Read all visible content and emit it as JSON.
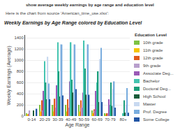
{
  "chart_data": {
    "type": "bar",
    "title": "Weekly Earnings by Age Range colored by Education Level",
    "subtitle": "Here is the chart from source 'American_time_use.xlsx':",
    "annotations": [
      "show average weekly earnings by age range and education level"
    ],
    "xlabel": "Age Range",
    "ylabel": "Weekly Earnings (Average)",
    "legend_title": "Education Level",
    "categories": [
      "0-14",
      "20-29",
      "30-39",
      "40-49",
      "50-59",
      "60-69",
      "70-79",
      "80+"
    ],
    "series": [
      {
        "name": "10th grade",
        "color": "#7dc242",
        "values": [
          50,
          200,
          200,
          200,
          200,
          100,
          50,
          0
        ]
      },
      {
        "name": "11th grade",
        "color": "#f5c400",
        "values": [
          30,
          80,
          80,
          80,
          80,
          50,
          20,
          0
        ]
      },
      {
        "name": "12th grade",
        "color": "#e05a1a",
        "values": [
          40,
          280,
          310,
          300,
          280,
          120,
          50,
          0
        ]
      },
      {
        "name": "9th grade",
        "color": "#b89fcc",
        "values": [
          100,
          100,
          150,
          150,
          150,
          100,
          50,
          0
        ]
      },
      {
        "name": "Associate Deg...",
        "color": "#9b59b6",
        "values": [
          0,
          450,
          550,
          620,
          420,
          450,
          300,
          0
        ]
      },
      {
        "name": "Bachelor",
        "color": "#45c4b0",
        "values": [
          0,
          980,
          1320,
          1320,
          1350,
          600,
          200,
          50
        ]
      },
      {
        "name": "Doctoral Deg...",
        "color": "#1a9e7a",
        "values": [
          0,
          600,
          800,
          650,
          850,
          800,
          600,
          280
        ]
      },
      {
        "name": "High School",
        "color": "#1a5c3a",
        "values": [
          100,
          300,
          350,
          420,
          380,
          250,
          180,
          60
        ]
      },
      {
        "name": "Master",
        "color": "#c8d9f0",
        "values": [
          0,
          1060,
          1280,
          1280,
          1280,
          1020,
          490,
          200
        ]
      },
      {
        "name": "Prof. Degree",
        "color": "#7aadde",
        "values": [
          0,
          580,
          1280,
          1280,
          1280,
          1220,
          620,
          500
        ]
      },
      {
        "name": "Some College",
        "color": "#2255a4",
        "values": [
          130,
          300,
          370,
          480,
          380,
          250,
          150,
          60
        ]
      }
    ],
    "ylim": [
      0,
      1450
    ],
    "yticks": [
      0,
      200,
      400,
      600,
      800,
      1000,
      1200,
      1400
    ],
    "grid": true,
    "legend": "right"
  }
}
